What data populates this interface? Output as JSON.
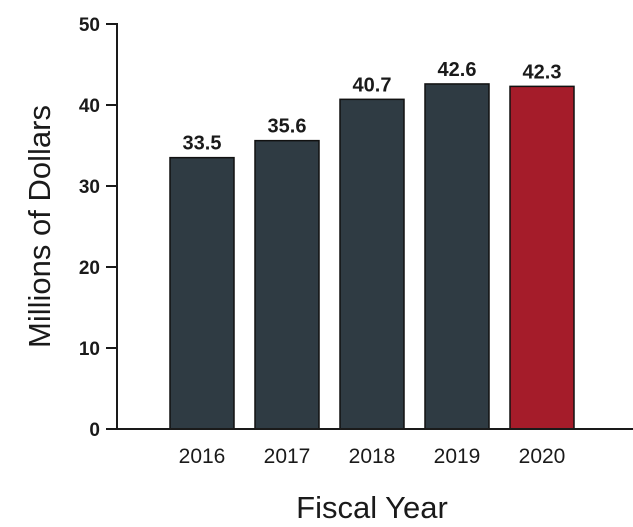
{
  "chart_data": {
    "type": "bar",
    "title": "",
    "xlabel": "Fiscal Year",
    "ylabel": "Millions of Dollars",
    "categories": [
      "2016",
      "2017",
      "2018",
      "2019",
      "2020"
    ],
    "values": [
      33.5,
      35.6,
      40.7,
      42.6,
      42.3
    ],
    "data_labels": [
      "33.5",
      "35.6",
      "40.7",
      "42.6",
      "42.3"
    ],
    "ylim": [
      0,
      50
    ],
    "yticks": [
      0,
      10,
      20,
      30,
      40,
      50
    ],
    "grid": false,
    "legend": "none",
    "colors": {
      "default_bar": "#2f3b43",
      "highlight_bar": "#a51c2a",
      "bar_outline": "#111111"
    },
    "highlight_index": 4
  }
}
